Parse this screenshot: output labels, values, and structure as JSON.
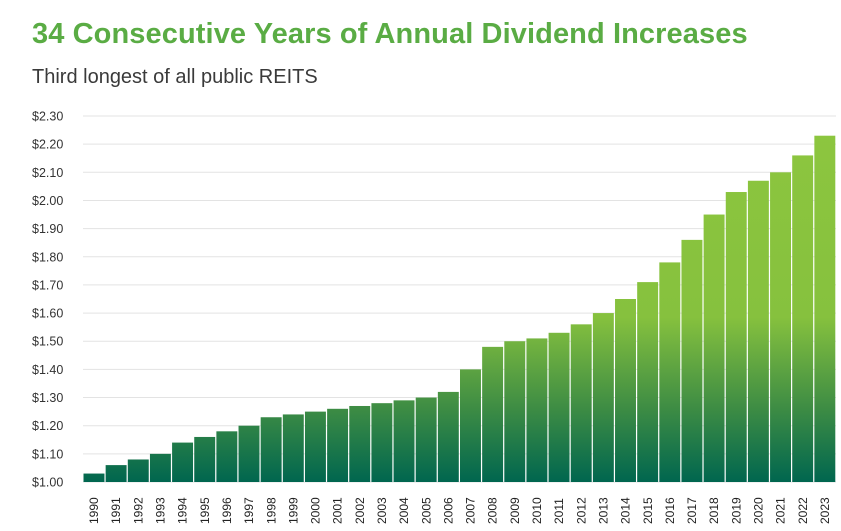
{
  "title": "34 Consecutive Years of Annual Dividend Increases",
  "subtitle": "Third longest of all public REITS",
  "chart_data": {
    "type": "bar",
    "title": "34 Consecutive Years of Annual Dividend Increases",
    "subtitle": "Third longest of all public REITS",
    "xlabel": "",
    "ylabel": "",
    "categories": [
      "1990",
      "1991",
      "1992",
      "1993",
      "1994",
      "1995",
      "1996",
      "1997",
      "1998",
      "1999",
      "2000",
      "2001",
      "2002",
      "2003",
      "2004",
      "2005",
      "2006",
      "2007",
      "2008",
      "2009",
      "2010",
      "2011",
      "2012",
      "2013",
      "2014",
      "2015",
      "2016",
      "2017",
      "2018",
      "2019",
      "2020",
      "2021",
      "2022",
      "2023"
    ],
    "values": [
      1.03,
      1.06,
      1.08,
      1.1,
      1.14,
      1.16,
      1.18,
      1.2,
      1.23,
      1.24,
      1.25,
      1.26,
      1.27,
      1.28,
      1.29,
      1.3,
      1.32,
      1.4,
      1.48,
      1.5,
      1.51,
      1.53,
      1.56,
      1.6,
      1.65,
      1.71,
      1.78,
      1.86,
      1.95,
      2.03,
      2.07,
      2.1,
      2.16,
      2.23
    ],
    "ylim": [
      1.0,
      2.3
    ],
    "yticks": [
      "$1.00",
      "$1.10",
      "$1.20",
      "$1.30",
      "$1.40",
      "$1.50",
      "$1.60",
      "$1.70",
      "$1.80",
      "$1.90",
      "$2.00",
      "$2.10",
      "$2.20",
      "$2.30"
    ],
    "ytick_values": [
      1.0,
      1.1,
      1.2,
      1.3,
      1.4,
      1.5,
      1.6,
      1.7,
      1.8,
      1.9,
      2.0,
      2.1,
      2.2,
      2.3
    ],
    "grid": true,
    "colors": {
      "title": "#5aac44",
      "bar_top": "#8dc63f",
      "bar_bottom": "#00664f"
    }
  }
}
